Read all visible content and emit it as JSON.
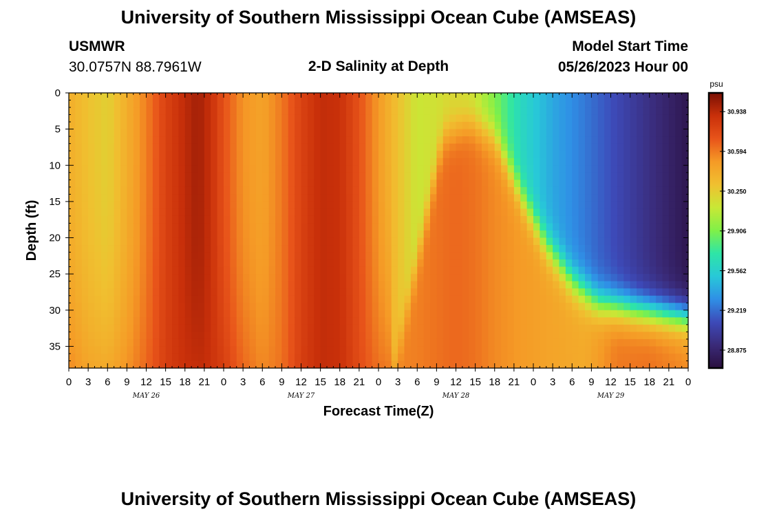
{
  "header": {
    "title": "University of Southern Mississippi Ocean Cube (AMSEAS)",
    "station": "USMWR",
    "coords": "30.0757N  88.7961W",
    "subtitle": "2-D Salinity at Depth",
    "model_start_label": "Model Start Time",
    "model_start_value": "05/26/2023 Hour 00"
  },
  "footer": {
    "title": "University of Southern Mississippi Ocean Cube (AMSEAS)"
  },
  "chart_data": {
    "type": "heatmap",
    "xlabel": "Forecast Time(Z)",
    "ylabel": "Depth (ft)",
    "colorbar_unit": "psu",
    "x_range_hours": [
      0,
      96
    ],
    "x_tick_labels": [
      "0",
      "3",
      "6",
      "9",
      "12",
      "15",
      "18",
      "21",
      "0",
      "3",
      "6",
      "9",
      "12",
      "15",
      "18",
      "21",
      "0",
      "3",
      "6",
      "9",
      "12",
      "15",
      "18",
      "21",
      "0",
      "3",
      "6",
      "9",
      "12",
      "15",
      "18",
      "21",
      "0"
    ],
    "date_labels": [
      "MAY 26",
      "MAY 27",
      "MAY 28",
      "MAY 29"
    ],
    "date_label_hours": [
      12,
      36,
      60,
      84
    ],
    "y_ticks": [
      0,
      5,
      10,
      15,
      20,
      25,
      30,
      35
    ],
    "y_range": [
      0,
      38
    ],
    "y_inverted": true,
    "colorbar_ticks": [
      30.938,
      30.594,
      30.25,
      29.906,
      29.562,
      29.219,
      28.875
    ],
    "colorbar_range": [
      28.72,
      31.1
    ],
    "colormap": [
      "#2a0f3e",
      "#3a2a78",
      "#3d4ab8",
      "#2f8fe6",
      "#28c8d8",
      "#2ee5a6",
      "#80f048",
      "#c8e836",
      "#f0c030",
      "#f59a26",
      "#e8541a",
      "#c9300a",
      "#7a1004"
    ],
    "surface_profile": [
      {
        "t": 0,
        "s": 30.4
      },
      {
        "t": 3,
        "s": 30.3
      },
      {
        "t": 6,
        "s": 30.23
      },
      {
        "t": 9,
        "s": 30.4
      },
      {
        "t": 12,
        "s": 30.58
      },
      {
        "t": 15,
        "s": 30.8
      },
      {
        "t": 18,
        "s": 30.93
      },
      {
        "t": 20,
        "s": 31.0
      },
      {
        "t": 22,
        "s": 30.9
      },
      {
        "t": 24,
        "s": 30.72
      },
      {
        "t": 27,
        "s": 30.52
      },
      {
        "t": 30,
        "s": 30.46
      },
      {
        "t": 33,
        "s": 30.6
      },
      {
        "t": 36,
        "s": 30.8
      },
      {
        "t": 39,
        "s": 30.92
      },
      {
        "t": 42,
        "s": 30.9
      },
      {
        "t": 45,
        "s": 30.72
      },
      {
        "t": 48,
        "s": 30.5
      },
      {
        "t": 51,
        "s": 30.3
      },
      {
        "t": 54,
        "s": 30.12
      },
      {
        "t": 57,
        "s": 30.15
      },
      {
        "t": 60,
        "s": 30.18
      },
      {
        "t": 63,
        "s": 30.1
      },
      {
        "t": 66,
        "s": 29.9
      },
      {
        "t": 70,
        "s": 29.62
      },
      {
        "t": 75,
        "s": 29.4
      },
      {
        "t": 80,
        "s": 29.25
      },
      {
        "t": 85,
        "s": 29.1
      },
      {
        "t": 90,
        "s": 28.95
      },
      {
        "t": 96,
        "s": 28.78
      }
    ],
    "bottom_profile": [
      {
        "t": 0,
        "s": 30.55
      },
      {
        "t": 3,
        "s": 30.45
      },
      {
        "t": 6,
        "s": 30.42
      },
      {
        "t": 9,
        "s": 30.52
      },
      {
        "t": 12,
        "s": 30.65
      },
      {
        "t": 15,
        "s": 30.82
      },
      {
        "t": 18,
        "s": 30.9
      },
      {
        "t": 21,
        "s": 30.92
      },
      {
        "t": 24,
        "s": 30.82
      },
      {
        "t": 27,
        "s": 30.65
      },
      {
        "t": 30,
        "s": 30.55
      },
      {
        "t": 33,
        "s": 30.62
      },
      {
        "t": 36,
        "s": 30.82
      },
      {
        "t": 39,
        "s": 30.92
      },
      {
        "t": 42,
        "s": 30.9
      },
      {
        "t": 45,
        "s": 30.75
      },
      {
        "t": 48,
        "s": 30.62
      },
      {
        "t": 51,
        "s": 30.57
      },
      {
        "t": 54,
        "s": 30.58
      },
      {
        "t": 57,
        "s": 30.62
      },
      {
        "t": 60,
        "s": 30.65
      },
      {
        "t": 63,
        "s": 30.62
      },
      {
        "t": 66,
        "s": 30.55
      },
      {
        "t": 70,
        "s": 30.5
      },
      {
        "t": 75,
        "s": 30.45
      },
      {
        "t": 80,
        "s": 30.42
      },
      {
        "t": 85,
        "s": 30.6
      },
      {
        "t": 90,
        "s": 30.62
      },
      {
        "t": 96,
        "s": 30.55
      }
    ],
    "halocline_depth_by_hour": [
      {
        "t": 0,
        "d": 40
      },
      {
        "t": 50,
        "d": 40
      },
      {
        "t": 58,
        "d": 6
      },
      {
        "t": 62,
        "d": 4
      },
      {
        "t": 66,
        "d": 6
      },
      {
        "t": 70,
        "d": 14
      },
      {
        "t": 74,
        "d": 21
      },
      {
        "t": 78,
        "d": 26
      },
      {
        "t": 82,
        "d": 29
      },
      {
        "t": 88,
        "d": 30
      },
      {
        "t": 96,
        "d": 31
      }
    ]
  }
}
